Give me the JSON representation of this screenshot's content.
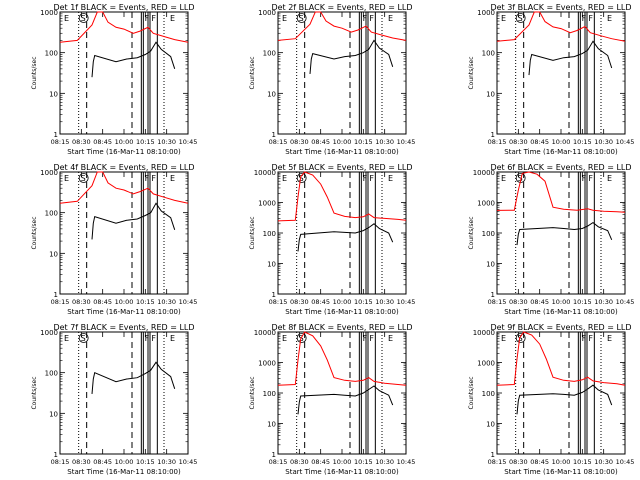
{
  "chart_data": [
    {
      "type": "line",
      "title": "Det 1f BLACK = Events, RED = LLD",
      "xlabel": "Start Time (16-Mar-11 08:10:00)",
      "ylabel": "Counts/sec",
      "ylim": [
        1,
        1000
      ],
      "log_y": true,
      "x_ticks": [
        "08:15",
        "08:30",
        "08:45",
        "10:00",
        "10:15",
        "10:30",
        "10:45"
      ],
      "y_ticks": [
        "1",
        "10",
        "100",
        "1000"
      ],
      "markers": [
        "E",
        "S",
        "F",
        "F",
        "E"
      ],
      "series": [
        {
          "name": "RED = LLD",
          "color": "#ff0000",
          "x": [
            0,
            1.3,
            2.4,
            2.8,
            3.2,
            3.6,
            4.2,
            4.8,
            5.5,
            6.0,
            6.6,
            7.0,
            7.8,
            8.6,
            9.6
          ],
          "y": [
            180,
            200,
            480,
            1000,
            1000,
            560,
            420,
            380,
            300,
            340,
            420,
            300,
            250,
            210,
            180
          ]
        },
        {
          "name": "BLACK = Events",
          "color": "#000000",
          "x": [
            2.4,
            2.5,
            2.6,
            4.2,
            5.0,
            5.8,
            6.4,
            6.8,
            7.2,
            7.6,
            8.3,
            8.6
          ],
          "y": [
            25,
            60,
            85,
            60,
            70,
            75,
            90,
            110,
            180,
            120,
            80,
            40
          ]
        }
      ]
    },
    {
      "type": "line",
      "title": "Det 2f BLACK = Events, RED = LLD",
      "xlabel": "Start Time (16-Mar-11 08:10:00)",
      "ylabel": "Counts/sec",
      "ylim": [
        1,
        1000
      ],
      "log_y": true,
      "x_ticks": [
        "08:15",
        "08:30",
        "08:45",
        "10:00",
        "10:15",
        "10:30",
        "10:45"
      ],
      "y_ticks": [
        "1",
        "10",
        "100",
        "1000"
      ],
      "markers": [
        "E",
        "S",
        "F",
        "F",
        "E"
      ],
      "series": [
        {
          "name": "RED = LLD",
          "color": "#ff0000",
          "x": [
            0,
            1.3,
            2.4,
            2.8,
            3.2,
            3.6,
            4.2,
            4.8,
            5.5,
            6.0,
            6.6,
            7.0,
            7.8,
            8.6,
            9.6
          ],
          "y": [
            200,
            220,
            500,
            1000,
            1000,
            600,
            450,
            400,
            320,
            360,
            450,
            320,
            270,
            230,
            200
          ]
        },
        {
          "name": "BLACK = Events",
          "color": "#000000",
          "x": [
            2.4,
            2.5,
            2.6,
            4.2,
            5.0,
            5.8,
            6.4,
            6.8,
            7.2,
            7.6,
            8.3,
            8.6
          ],
          "y": [
            30,
            70,
            95,
            70,
            80,
            85,
            100,
            120,
            200,
            130,
            90,
            45
          ]
        }
      ]
    },
    {
      "type": "line",
      "title": "Det 3f BLACK = Events, RED = LLD",
      "xlabel": "Start Time (16-Mar-11 08:10:00)",
      "ylabel": "Counts/sec",
      "ylim": [
        1,
        1000
      ],
      "log_y": true,
      "x_ticks": [
        "08:15",
        "08:30",
        "08:45",
        "10:00",
        "10:15",
        "10:30",
        "10:45"
      ],
      "y_ticks": [
        "1",
        "10",
        "100",
        "1000"
      ],
      "markers": [
        "E",
        "S",
        "F",
        "F",
        "E"
      ],
      "series": [
        {
          "name": "RED = LLD",
          "color": "#ff0000",
          "x": [
            0,
            1.3,
            2.4,
            2.8,
            3.2,
            3.6,
            4.2,
            4.8,
            5.5,
            6.0,
            6.6,
            7.0,
            7.8,
            8.6,
            9.6
          ],
          "y": [
            190,
            210,
            480,
            1000,
            1000,
            580,
            430,
            390,
            310,
            350,
            440,
            310,
            260,
            220,
            190
          ]
        },
        {
          "name": "BLACK = Events",
          "color": "#000000",
          "x": [
            2.4,
            2.5,
            2.6,
            4.2,
            5.0,
            5.8,
            6.4,
            6.8,
            7.2,
            7.6,
            8.3,
            8.6
          ],
          "y": [
            28,
            65,
            90,
            65,
            75,
            80,
            95,
            115,
            190,
            125,
            85,
            42
          ]
        }
      ]
    },
    {
      "type": "line",
      "title": "Det 4f BLACK = Events, RED = LLD",
      "xlabel": "Start Time (16-Mar-11 08:10:00)",
      "ylabel": "Counts/sec",
      "ylim": [
        1,
        1000
      ],
      "log_y": true,
      "x_ticks": [
        "08:15",
        "08:30",
        "08:45",
        "10:00",
        "10:15",
        "10:30",
        "10:45"
      ],
      "y_ticks": [
        "1",
        "10",
        "100",
        "1000"
      ],
      "markers": [
        "E",
        "S",
        "F",
        "F",
        "E"
      ],
      "series": [
        {
          "name": "RED = LLD",
          "color": "#ff0000",
          "x": [
            0,
            1.3,
            2.4,
            2.8,
            3.2,
            3.6,
            4.2,
            4.8,
            5.5,
            6.0,
            6.6,
            7.0,
            7.8,
            8.6,
            9.6
          ],
          "y": [
            170,
            190,
            460,
            1000,
            1000,
            540,
            400,
            360,
            290,
            330,
            400,
            290,
            240,
            200,
            170
          ]
        },
        {
          "name": "BLACK = Events",
          "color": "#000000",
          "x": [
            2.4,
            2.5,
            2.6,
            4.2,
            5.0,
            5.8,
            6.4,
            6.8,
            7.2,
            7.6,
            8.3,
            8.6
          ],
          "y": [
            22,
            55,
            80,
            55,
            65,
            70,
            85,
            100,
            170,
            110,
            75,
            38
          ]
        }
      ]
    },
    {
      "type": "line",
      "title": "Det 5f BLACK = Events, RED = LLD",
      "xlabel": "Start Time (16-Mar-11 08:10:00)",
      "ylabel": "Counts/sec",
      "ylim": [
        1,
        10000
      ],
      "log_y": true,
      "x_ticks": [
        "08:15",
        "08:30",
        "08:45",
        "10:00",
        "10:15",
        "10:30",
        "10:45"
      ],
      "y_ticks": [
        "1",
        "10",
        "100",
        "1000",
        "10000"
      ],
      "markers": [
        "E",
        "S",
        "F",
        "F",
        "E"
      ],
      "series": [
        {
          "name": "RED = LLD",
          "color": "#ff0000",
          "x": [
            0,
            1.3,
            1.5,
            1.7,
            2.0,
            2.6,
            3.2,
            3.7,
            4.2,
            5.0,
            5.8,
            6.4,
            6.8,
            7.2,
            8.0,
            9.0,
            9.6
          ],
          "y": [
            250,
            260,
            1500,
            7000,
            10000,
            8000,
            4000,
            1500,
            450,
            350,
            320,
            340,
            420,
            320,
            300,
            280,
            260
          ]
        },
        {
          "name": "BLACK = Events",
          "color": "#000000",
          "x": [
            1.5,
            1.6,
            1.7,
            4.2,
            5.0,
            5.8,
            6.4,
            6.8,
            7.2,
            7.6,
            8.3,
            8.6
          ],
          "y": [
            25,
            60,
            90,
            110,
            105,
            100,
            120,
            150,
            200,
            140,
            100,
            50
          ]
        }
      ]
    },
    {
      "type": "line",
      "title": "Det 6f BLACK = Events, RED = LLD",
      "xlabel": "Start Time (16-Mar-11 08:10:00)",
      "ylabel": "Counts/sec",
      "ylim": [
        1,
        10000
      ],
      "log_y": true,
      "x_ticks": [
        "08:15",
        "08:30",
        "08:45",
        "10:00",
        "10:15",
        "10:30",
        "10:45"
      ],
      "y_ticks": [
        "1",
        "10",
        "100",
        "1000",
        "10000"
      ],
      "markers": [
        "E",
        "S",
        "F",
        "F",
        "E"
      ],
      "series": [
        {
          "name": "RED = LLD",
          "color": "#ff0000",
          "x": [
            0,
            1.3,
            1.6,
            1.9,
            2.4,
            3.0,
            3.6,
            4.2,
            5.0,
            6.0,
            6.8,
            7.2,
            8.0,
            9.0,
            9.6
          ],
          "y": [
            550,
            560,
            2500,
            9000,
            10000,
            8500,
            5000,
            700,
            600,
            560,
            620,
            560,
            520,
            500,
            480
          ]
        },
        {
          "name": "BLACK = Events",
          "color": "#000000",
          "x": [
            1.5,
            1.6,
            1.7,
            4.2,
            5.0,
            5.8,
            6.4,
            6.8,
            7.2,
            7.6,
            8.3,
            8.6
          ],
          "y": [
            40,
            90,
            130,
            150,
            140,
            130,
            140,
            170,
            220,
            160,
            120,
            60
          ]
        }
      ]
    },
    {
      "type": "line",
      "title": "Det 7f BLACK = Events, RED = LLD",
      "xlabel": "Start Time (16-Mar-11 08:10:00)",
      "ylabel": "Counts/sec",
      "ylim": [
        1,
        1000
      ],
      "log_y": true,
      "x_ticks": [
        "08:15",
        "08:30",
        "08:45",
        "10:00",
        "10:15",
        "10:30",
        "10:45"
      ],
      "y_ticks": [
        "1",
        "10",
        "100",
        "1000"
      ],
      "markers": [
        "E",
        "S",
        "F",
        "F",
        "E"
      ],
      "series": [
        {
          "name": "BLACK = Events",
          "color": "#000000",
          "x": [
            2.4,
            2.5,
            2.6,
            4.2,
            5.0,
            5.8,
            6.4,
            6.8,
            7.2,
            7.6,
            8.3,
            8.6
          ],
          "y": [
            30,
            70,
            100,
            60,
            70,
            75,
            95,
            115,
            180,
            120,
            80,
            40
          ]
        }
      ]
    },
    {
      "type": "line",
      "title": "Det 8f BLACK = Events, RED = LLD",
      "xlabel": "Start Time (16-Mar-11 08:10:00)",
      "ylabel": "Counts/sec",
      "ylim": [
        1,
        10000
      ],
      "log_y": true,
      "x_ticks": [
        "08:15",
        "08:30",
        "08:45",
        "10:00",
        "10:15",
        "10:30",
        "10:45"
      ],
      "y_ticks": [
        "1",
        "10",
        "100",
        "1000",
        "10000"
      ],
      "markers": [
        "E",
        "S",
        "F",
        "F",
        "E"
      ],
      "series": [
        {
          "name": "RED = LLD",
          "color": "#ff0000",
          "x": [
            0,
            1.3,
            1.5,
            1.7,
            2.0,
            2.6,
            3.2,
            3.7,
            4.2,
            5.0,
            5.8,
            6.4,
            6.8,
            7.2,
            8.0,
            9.0,
            9.6
          ],
          "y": [
            180,
            190,
            1200,
            6000,
            10000,
            7500,
            3500,
            1200,
            320,
            260,
            240,
            260,
            320,
            240,
            210,
            190,
            180
          ]
        },
        {
          "name": "BLACK = Events",
          "color": "#000000",
          "x": [
            1.5,
            1.6,
            1.7,
            4.2,
            5.0,
            5.8,
            6.4,
            6.8,
            7.2,
            7.6,
            8.3,
            8.6
          ],
          "y": [
            20,
            50,
            80,
            90,
            85,
            80,
            100,
            130,
            170,
            120,
            85,
            40
          ]
        }
      ]
    },
    {
      "type": "line",
      "title": "Det 9f BLACK = Events, RED = LLD",
      "xlabel": "Start Time (16-Mar-11 08:10:00)",
      "ylabel": "Counts/sec",
      "ylim": [
        1,
        10000
      ],
      "log_y": true,
      "x_ticks": [
        "08:15",
        "08:30",
        "08:45",
        "10:00",
        "10:15",
        "10:30",
        "10:45"
      ],
      "y_ticks": [
        "1",
        "10",
        "100",
        "1000",
        "10000"
      ],
      "markers": [
        "E",
        "S",
        "F",
        "F",
        "E"
      ],
      "series": [
        {
          "name": "RED = LLD",
          "color": "#ff0000",
          "x": [
            0,
            1.3,
            1.5,
            1.7,
            2.0,
            2.6,
            3.2,
            3.7,
            4.2,
            5.0,
            5.8,
            6.4,
            6.8,
            7.2,
            8.0,
            9.0,
            9.6
          ],
          "y": [
            180,
            190,
            1300,
            6500,
            10000,
            8000,
            4000,
            1300,
            330,
            260,
            240,
            270,
            330,
            250,
            220,
            200,
            180
          ]
        },
        {
          "name": "BLACK = Events",
          "color": "#000000",
          "x": [
            1.5,
            1.6,
            1.7,
            4.2,
            5.0,
            5.8,
            6.4,
            6.8,
            7.2,
            7.6,
            8.3,
            8.6
          ],
          "y": [
            20,
            55,
            85,
            95,
            90,
            85,
            105,
            135,
            180,
            125,
            90,
            40
          ]
        }
      ]
    }
  ]
}
